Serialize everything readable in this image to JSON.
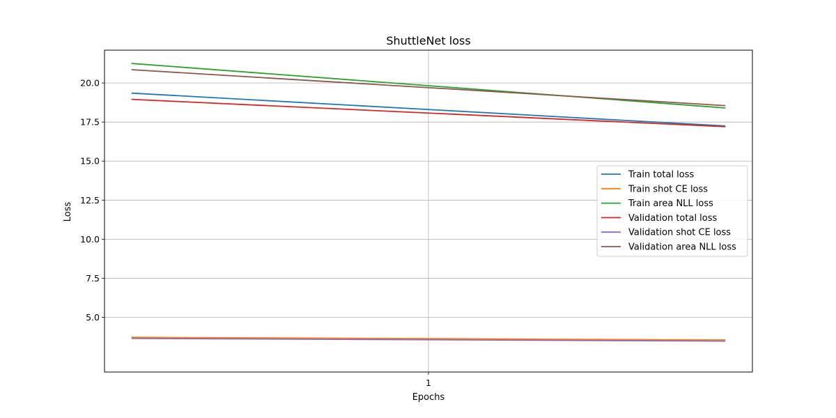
{
  "chart_data": {
    "type": "line",
    "title": "ShuttleNet loss",
    "xlabel": "Epochs",
    "ylabel": "Loss",
    "x": [
      0,
      2
    ],
    "xticks": [
      1
    ],
    "xlim": [
      -0.091,
      2.091
    ],
    "ylim": [
      1.5,
      22.1
    ],
    "yticks": [
      5.0,
      7.5,
      10.0,
      12.5,
      15.0,
      17.5,
      20.0
    ],
    "grid": true,
    "legend_position": "center-right",
    "series": [
      {
        "name": "Train total loss",
        "color": "#1f77b4",
        "values": [
          19.35,
          17.25
        ]
      },
      {
        "name": "Train shot CE loss",
        "color": "#ff7f0e",
        "values": [
          3.72,
          3.55
        ]
      },
      {
        "name": "Train area NLL loss",
        "color": "#2ca02c",
        "values": [
          21.25,
          18.4
        ]
      },
      {
        "name": "Validation total loss",
        "color": "#d62728",
        "values": [
          18.95,
          17.2
        ]
      },
      {
        "name": "Validation shot CE loss",
        "color": "#9467bd",
        "values": [
          3.65,
          3.48
        ]
      },
      {
        "name": "Validation area NLL loss",
        "color": "#8c564b",
        "values": [
          20.85,
          18.55
        ]
      }
    ]
  }
}
